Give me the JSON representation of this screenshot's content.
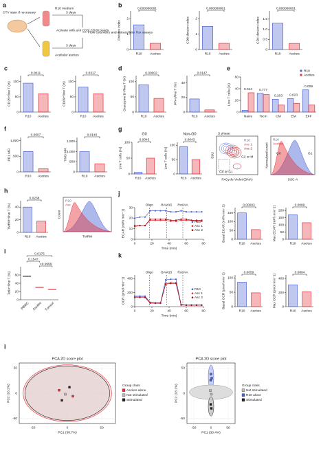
{
  "chart_data": [
    {
      "type": "diagram",
      "panel": "a",
      "texts": [
        "CTV stain if necessary",
        "R10 medium",
        "3 days",
        "Activate with anti CD3/ CD28 beads",
        "Flow cytometry and extracellular flux assays",
        "Acellular ascites",
        "3 days"
      ]
    },
    {
      "type": "bar",
      "panel": "b",
      "categories": [
        "R10",
        "Ascites"
      ],
      "values": [
        1.6,
        0.4
      ],
      "colors": [
        "#4a62d2",
        "#e5323a"
      ],
      "ylabel": "Division index",
      "ylim": [
        0,
        2.5
      ],
      "yticks": [
        0,
        1,
        2
      ],
      "pvalue": "0.000000001"
    },
    {
      "type": "bar",
      "categories": [
        "R10",
        "Ascites"
      ],
      "values": [
        1.5,
        0.4
      ],
      "colors": [
        "#4a62d2",
        "#e5323a"
      ],
      "ylabel": "CD8 division index",
      "ylim": [
        0,
        2.5
      ],
      "yticks": [
        0,
        1,
        2
      ],
      "pvalue": "0.000000001"
    },
    {
      "type": "bar",
      "categories": [
        "R10",
        "Ascites"
      ],
      "values": [
        1.3,
        0.3
      ],
      "colors": [
        "#4a62d2",
        "#e5323a"
      ],
      "ylabel": "CD4 division index",
      "ylim": [
        0,
        1.9
      ],
      "yticks": [
        0,
        0.5,
        {
          "value": 1,
          "label": "1.0"
        },
        1.5
      ],
      "pvalue": "0.000000001"
    },
    {
      "type": "bar",
      "panel": "c",
      "categories": [
        "R10",
        "Ascites"
      ],
      "values": [
        95,
        60
      ],
      "colors": [
        "#4a62d2",
        "#e5323a"
      ],
      "ylabel": "CD25+/live T (%)",
      "ylim": [
        0,
        120
      ],
      "yticks": [
        0,
        50,
        100
      ],
      "pvalue": "0.0011"
    },
    {
      "type": "bar",
      "categories": [
        "R10",
        "Ascites"
      ],
      "values": [
        82,
        60
      ],
      "colors": [
        "#4a62d2",
        "#e5323a"
      ],
      "ylabel": "CD69+/live T (%)",
      "ylim": [
        0,
        120
      ],
      "yticks": [
        0,
        50,
        100
      ],
      "pvalue": "0.0317"
    },
    {
      "type": "bar",
      "panel": "d",
      "categories": [
        "R10",
        "Ascites"
      ],
      "values": [
        90,
        45
      ],
      "colors": [
        "#4a62d2",
        "#e5323a"
      ],
      "ylabel": "Granzyme B+/live T (%)",
      "ylim": [
        0,
        120
      ],
      "yticks": [
        0,
        50,
        100
      ],
      "pvalue": "0.00002"
    },
    {
      "type": "bar",
      "categories": [
        "R10",
        "Ascites"
      ],
      "values": [
        18,
        3
      ],
      "colors": [
        "#4a62d2",
        "#e5323a"
      ],
      "ylabel": "IFN-γ/live T (%)",
      "ylim": [
        0,
        50
      ],
      "yticks": [
        0,
        20,
        40
      ],
      "pvalue": "0.0147"
    },
    {
      "type": "groupedbar",
      "panel": "e",
      "categories": [
        "Naive",
        "Tscm",
        "CM",
        "EM",
        "EFF"
      ],
      "series": [
        {
          "name": "R10",
          "color": "#4a62d2",
          "values": [
            3,
            32,
            22,
            23,
            38
          ]
        },
        {
          "name": "Ascites",
          "color": "#e5323a",
          "values": [
            33,
            30,
            12,
            15,
            12
          ]
        }
      ],
      "ylabel": "Live T cells (%)",
      "ylim": [
        0,
        60
      ],
      "yticks": [
        0,
        20,
        40,
        60
      ],
      "pvalues": [
        "0.014",
        "0.777",
        "0.203",
        "0.023",
        "0.009"
      ]
    },
    {
      "type": "bar",
      "panel": "f",
      "categories": [
        "R10",
        "Ascites"
      ],
      "values": [
        650,
        100
      ],
      "colors": [
        "#4a62d2",
        "#e5323a"
      ],
      "ylabel": "PD1 MFI",
      "ylim": [
        0,
        1100
      ],
      "yticks": [
        0,
        500,
        {
          "value": 1000,
          "label": "1,000"
        }
      ],
      "pvalue": "0.0007"
    },
    {
      "type": "bar",
      "categories": [
        "R10",
        "Ascites"
      ],
      "values": [
        1000,
        400
      ],
      "colors": [
        "#4a62d2",
        "#e5323a"
      ],
      "ylabel": "TIM3 MFI",
      "ylim": [
        0,
        1700
      ],
      "yticks": [
        0,
        500,
        {
          "value": 1000,
          "label": "1,000"
        },
        {
          "value": 1500,
          "label": "1,500"
        }
      ],
      "pvalue": "0.0140"
    },
    {
      "type": "bar",
      "panel": "g",
      "title": "G0",
      "categories": [
        "R10",
        "Ascites"
      ],
      "values": [
        5,
        50
      ],
      "colors": [
        "#4a62d2",
        "#e5323a"
      ],
      "ylabel": "Live T cells (%)",
      "ylim": [
        0,
        100
      ],
      "yticks": [
        0,
        50,
        100
      ],
      "pvalue": "0.0043"
    },
    {
      "type": "bar",
      "title": "Non-G0",
      "categories": [
        "R10",
        "Ascites"
      ],
      "values": [
        95,
        50
      ],
      "colors": [
        "#4a62d2",
        "#e5323a"
      ],
      "ylabel": "Live T cells (%)",
      "ylim": [
        0,
        110
      ],
      "yticks": [
        0,
        50,
        100
      ],
      "pvalue": "0.0043"
    },
    {
      "type": "flow",
      "title": "S phase",
      "xlabel": "FxCycle Violet (DNA)",
      "ylabel": "EdU",
      "gates": [
        "G2 or M",
        "G0 or G1"
      ],
      "series": [
        {
          "name": "R10",
          "color": "#4a62d2"
        },
        {
          "name": "Asc 1",
          "color": "#e5323a"
        },
        {
          "name": "Asc 2",
          "color": "#a0141c"
        }
      ]
    },
    {
      "type": "flowhist",
      "xlabel": "SSC-A",
      "ylabel": "Normalized count",
      "gates": [
        "G0",
        "G1"
      ],
      "series": [
        {
          "name": "R10",
          "color": "#4a62d2"
        },
        {
          "name": "Ascites",
          "color": "#e5323a"
        }
      ]
    },
    {
      "type": "bar",
      "panel": "h",
      "categories": [
        "R10",
        "Ascites"
      ],
      "values": [
        40,
        18
      ],
      "colors": [
        "#4a62d2",
        "#e5323a"
      ],
      "ylabel": "TMRM+/live T (%)",
      "ylim": [
        0,
        50
      ],
      "yticks": [
        0,
        20,
        40
      ],
      "pvalue": "0.0238"
    },
    {
      "type": "flowhist",
      "xlabel": "TMRM",
      "ylabel": "Count",
      "series": [
        {
          "name": "R10",
          "color": "#4a62d2"
        },
        {
          "name": "Asc",
          "color": "#e5323a"
        }
      ]
    },
    {
      "type": "line",
      "panel": "j",
      "xlabel": "Time (min)",
      "ylabel": "ECAR (mPh min−1)",
      "xlim": [
        0,
        80
      ],
      "xticks": [
        0,
        20,
        40,
        60,
        80
      ],
      "ylim": [
        0,
        30
      ],
      "yticks": [
        0,
        10,
        20,
        30
      ],
      "annotations": [
        {
          "label": "Oligo",
          "x": 17
        },
        {
          "label": "BAM15",
          "x": 37
        },
        {
          "label": "Rot/AA",
          "x": 56
        }
      ],
      "x": [
        0,
        6,
        12,
        18,
        24,
        30,
        36,
        42,
        48,
        54,
        60,
        66,
        72,
        78
      ],
      "series": [
        {
          "name": "R10",
          "color": "#4a62d2",
          "values": [
            20,
            21,
            21,
            27,
            27,
            27,
            27,
            26,
            26,
            27,
            26,
            26,
            26,
            26
          ]
        },
        {
          "name": "Asc 1",
          "color": "#e5323a",
          "values": [
            12,
            13,
            13,
            18,
            18,
            18,
            18,
            17,
            17,
            18,
            18,
            18,
            17,
            17
          ]
        },
        {
          "name": "Asc 2",
          "color": "#a0141c",
          "values": [
            13,
            13,
            13,
            19,
            19,
            19,
            19,
            18,
            18,
            19,
            19,
            18,
            18,
            18
          ]
        }
      ]
    },
    {
      "type": "bar",
      "categories": [
        "R10",
        "Ascites"
      ],
      "values": [
        150,
        55
      ],
      "colors": [
        "#4a62d2",
        "#e5323a"
      ],
      "ylabel": "Basal ECAR (mPh min−1)",
      "ylim": [
        0,
        180
      ],
      "yticks": [
        0,
        50,
        100,
        150
      ],
      "pvalue": "0.00003"
    },
    {
      "type": "bar",
      "categories": [
        "R10",
        "Ascites"
      ],
      "values": [
        170,
        115
      ],
      "colors": [
        "#4a62d2",
        "#e5323a"
      ],
      "ylabel": "Max ECAR (mPh min−1)",
      "ylim": [
        0,
        220
      ],
      "yticks": [
        0,
        50,
        100,
        150,
        200
      ],
      "pvalue": "0.0089"
    },
    {
      "type": "dotplot",
      "panel": "i",
      "categories": [
        "PBMC",
        "Ascites",
        "Tumour"
      ],
      "values": [
        57,
        30,
        25
      ],
      "colors": [
        "#222222",
        "#e5323a",
        "#e5323a"
      ],
      "ylabel": "Tetlo+/live T (%)",
      "ylim": [
        0,
        80
      ],
      "yticks": [
        0,
        20,
        40,
        60
      ],
      "pvalues": [
        "0.0175",
        "0.1547",
        ">0.9999"
      ]
    },
    {
      "type": "line",
      "panel": "k",
      "xlabel": "Time (min)",
      "ylabel": "OCR (pmol min−1)",
      "xlim": [
        0,
        80
      ],
      "xticks": [
        0,
        20,
        40,
        60,
        80
      ],
      "ylim": [
        0,
        450
      ],
      "yticks": [
        0,
        200,
        400
      ],
      "annotations": [
        {
          "label": "Oligo",
          "x": 17
        },
        {
          "label": "BAM15",
          "x": 37
        },
        {
          "label": "Rot/AA",
          "x": 56
        }
      ],
      "x": [
        0,
        6,
        12,
        18,
        24,
        30,
        36,
        42,
        48,
        54,
        60,
        66,
        72,
        78
      ],
      "series": [
        {
          "name": "R10",
          "color": "#4a62d2",
          "values": [
            150,
            150,
            150,
            60,
            55,
            55,
            380,
            390,
            390,
            30,
            25,
            25,
            25,
            25
          ]
        },
        {
          "name": "Asc 1",
          "color": "#e5323a",
          "values": [
            140,
            140,
            140,
            55,
            50,
            50,
            330,
            340,
            340,
            25,
            20,
            20,
            20,
            20
          ]
        },
        {
          "name": "Asc 2",
          "color": "#a0141c",
          "values": [
            130,
            130,
            130,
            50,
            48,
            48,
            320,
            330,
            330,
            22,
            20,
            20,
            20,
            20
          ]
        }
      ]
    },
    {
      "type": "bar",
      "categories": [
        "R10",
        "Ascites"
      ],
      "values": [
        85,
        48
      ],
      "colors": [
        "#4a62d2",
        "#e5323a"
      ],
      "ylabel": "Basal OCR (pmol min−1)",
      "ylim": [
        0,
        110
      ],
      "yticks": [
        0,
        50,
        100
      ],
      "pvalue": "0.0059"
    },
    {
      "type": "bar",
      "categories": [
        "R10",
        "Ascites"
      ],
      "values": [
        310,
        210
      ],
      "colors": [
        "#4a62d2",
        "#e5323a"
      ],
      "ylabel": "Max OCR (pmol min−1)",
      "ylim": [
        0,
        450
      ],
      "yticks": [
        0,
        200,
        400
      ],
      "pvalue": "0.0804"
    },
    {
      "type": "pca",
      "panel": "l",
      "title": "PCA 2D score plot",
      "xlabel": "PC1 (38.7%)",
      "ylabel": "PC2 (16.2%)",
      "legend_title": "Group class",
      "xlim": [
        -70,
        70
      ],
      "xticks": [
        -50,
        0,
        50
      ],
      "ylim": [
        -60,
        60
      ],
      "yticks": [
        -50,
        0,
        50
      ],
      "series": [
        {
          "name": "Ascites alone",
          "color": "#e5323a",
          "x": [
            -12,
            8
          ],
          "y": [
            6,
            -6
          ]
        },
        {
          "name": "Not stimulated",
          "color": "#bbbbbb",
          "x": [
            -3
          ],
          "y": [
            -2
          ]
        },
        {
          "name": "Stimulated",
          "color": "#222222",
          "x": [
            -8,
            3
          ],
          "y": [
            -14,
            12
          ]
        }
      ]
    },
    {
      "type": "pca",
      "title": "PCA 2D score plot",
      "xlabel": "PC1 (30.4%)",
      "ylabel": "PC2 (18.1%)",
      "legend_title": "Group class",
      "xlim": [
        -70,
        70
      ],
      "xticks": [
        -50,
        0,
        50
      ],
      "ylim": [
        -60,
        60
      ],
      "yticks": [
        -50,
        0,
        50
      ],
      "series": [
        {
          "name": "Not stimulated",
          "color": "#bbbbbb",
          "x": [
            -2,
            1
          ],
          "y": [
            5,
            -2
          ]
        },
        {
          "name": "R10 alone",
          "color": "#4a62d2",
          "x": [
            0,
            2,
            -1
          ],
          "y": [
            38,
            30,
            26
          ]
        },
        {
          "name": "Stimulated",
          "color": "#222222",
          "x": [
            -1,
            1
          ],
          "y": [
            -22,
            -30
          ]
        }
      ]
    }
  ]
}
